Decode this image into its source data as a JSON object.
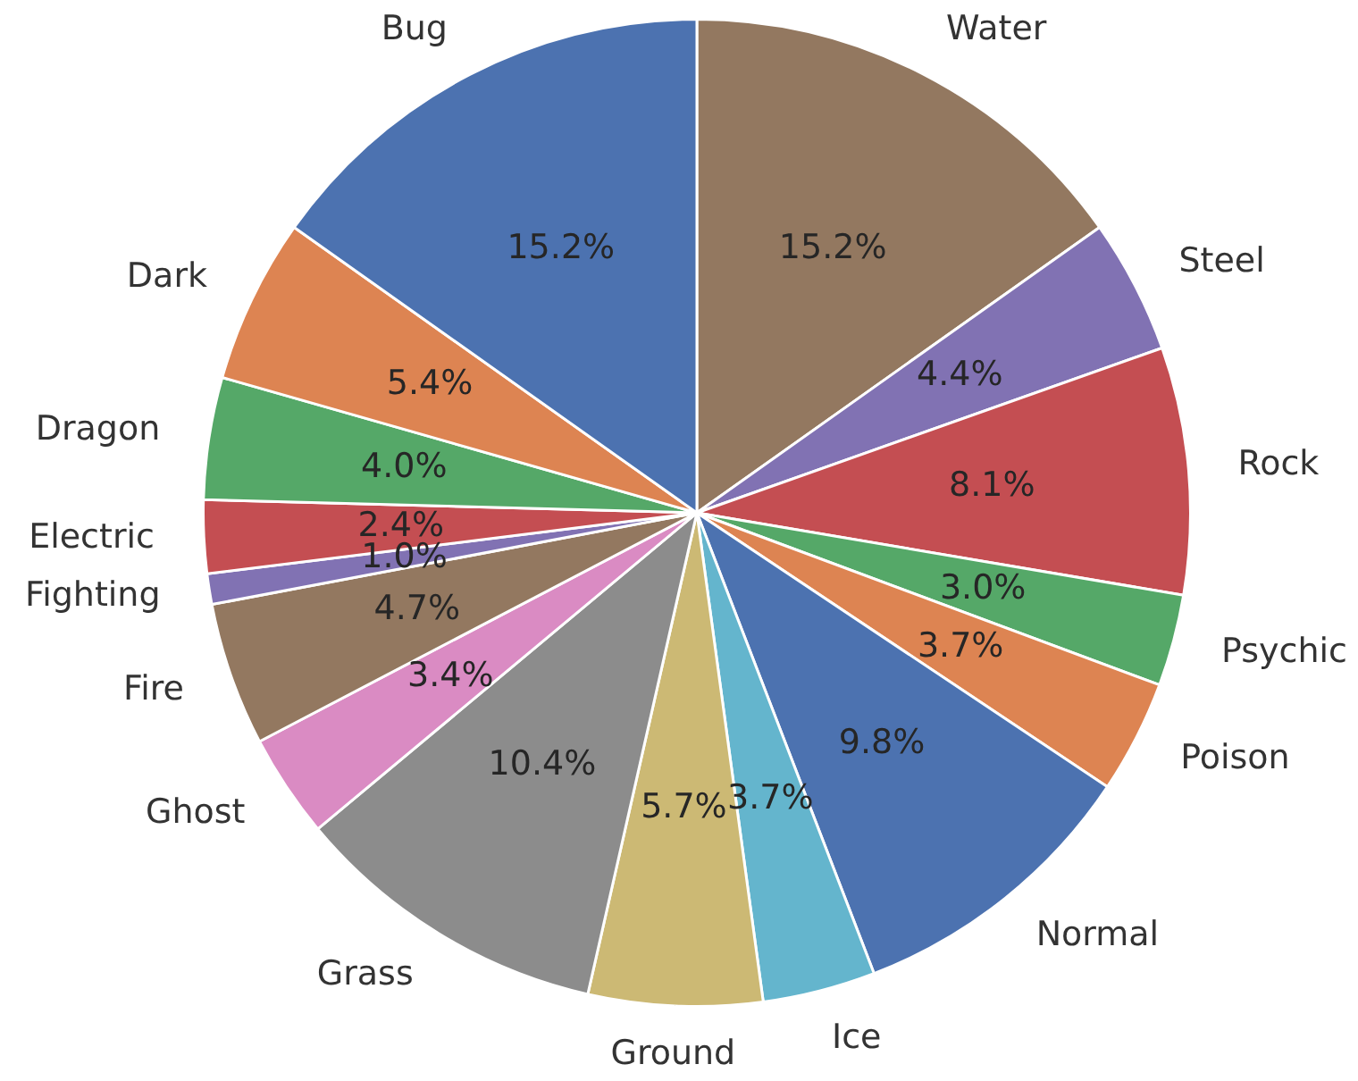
{
  "chart_data": {
    "type": "pie",
    "categories": [
      "Water",
      "Steel",
      "Rock",
      "Psychic",
      "Poison",
      "Normal",
      "Ice",
      "Ground",
      "Grass",
      "Ghost",
      "Fire",
      "Fighting",
      "Electric",
      "Dragon",
      "Dark",
      "Bug"
    ],
    "values": [
      15.2,
      4.4,
      8.1,
      3.0,
      3.7,
      9.8,
      3.7,
      5.7,
      10.4,
      3.4,
      4.7,
      1.0,
      2.4,
      4.0,
      5.4,
      15.2
    ],
    "value_labels": [
      "15.2%",
      "4.4%",
      "8.1%",
      "3.0%",
      "3.7%",
      "9.8%",
      "3.7%",
      "5.7%",
      "10.4%",
      "3.4%",
      "4.7%",
      "1.0%",
      "2.4%",
      "4.0%",
      "5.4%",
      "15.2%"
    ],
    "colors": [
      "#937860",
      "#8172b3",
      "#c44e52",
      "#55a868",
      "#dd8452",
      "#4c72b0",
      "#64b5cd",
      "#ccb974",
      "#8c8c8c",
      "#da8bc3",
      "#937860",
      "#8172b3",
      "#c44e52",
      "#55a868",
      "#dd8452",
      "#4c72b0"
    ],
    "legend": false
  }
}
